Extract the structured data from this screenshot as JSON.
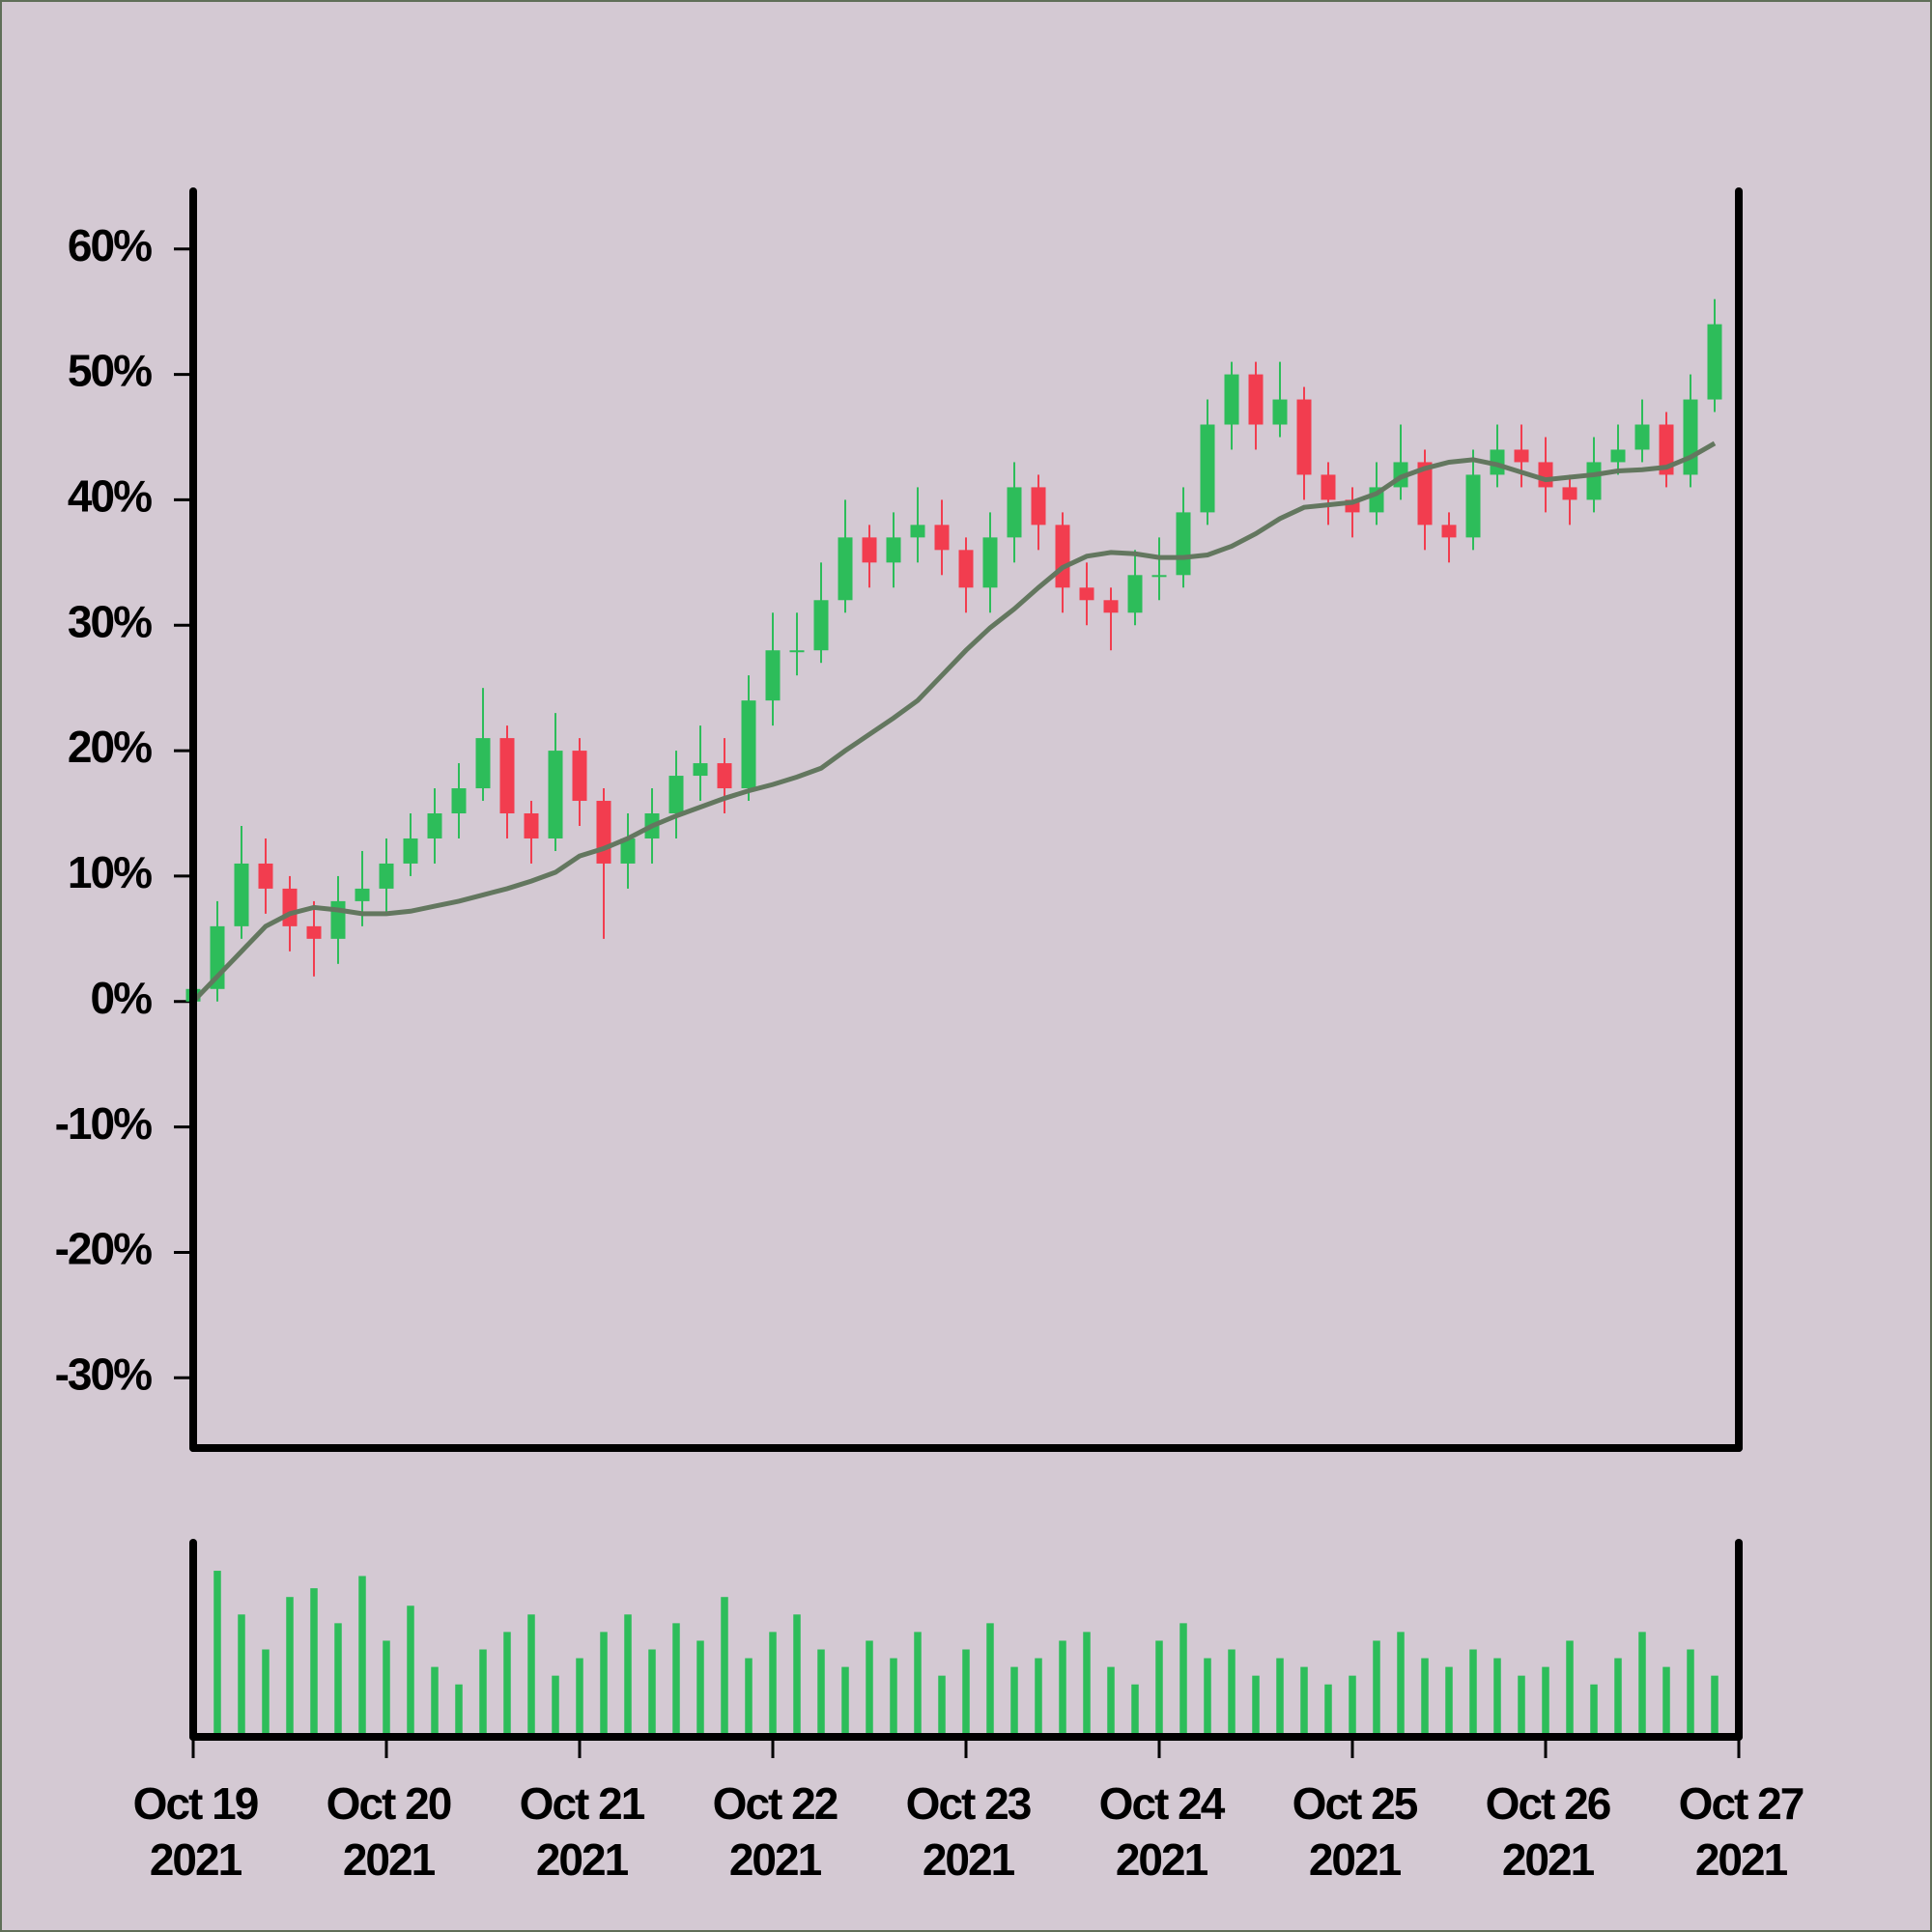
{
  "chart_data": {
    "type": "candlestick",
    "x": [
      0,
      1,
      2,
      3,
      4,
      5,
      6,
      7,
      8,
      9,
      10,
      11,
      12,
      13,
      14,
      15,
      16,
      17,
      18,
      19,
      20,
      21,
      22,
      23,
      24,
      25,
      26,
      27,
      28,
      29,
      30,
      31,
      32,
      33,
      34,
      35,
      36,
      37,
      38,
      39,
      40,
      41,
      42,
      43,
      44,
      45,
      46,
      47,
      48,
      49,
      50,
      51,
      52,
      53,
      54,
      55,
      56,
      57,
      58,
      59,
      60,
      61,
      62,
      63
    ],
    "open": [
      0,
      1,
      6,
      11,
      9,
      6,
      5,
      8,
      9,
      11,
      13,
      15,
      17,
      21,
      15,
      13,
      20,
      16,
      11,
      13,
      15,
      18,
      19,
      17,
      24,
      28,
      28,
      32,
      37,
      35,
      37,
      38,
      36,
      33,
      37,
      41,
      38,
      33,
      32,
      31,
      34,
      34,
      39,
      46,
      50,
      46,
      48,
      42,
      40,
      39,
      41,
      43,
      38,
      37,
      42,
      44,
      43,
      41,
      40,
      43,
      44,
      46,
      42,
      48
    ],
    "high": [
      3,
      8,
      14,
      13,
      10,
      8,
      10,
      12,
      13,
      15,
      17,
      19,
      25,
      22,
      16,
      23,
      21,
      17,
      15,
      17,
      20,
      22,
      21,
      26,
      31,
      31,
      35,
      40,
      38,
      39,
      41,
      40,
      37,
      39,
      43,
      42,
      39,
      35,
      33,
      36,
      37,
      41,
      48,
      51,
      51,
      51,
      49,
      43,
      41,
      43,
      46,
      44,
      39,
      44,
      46,
      46,
      45,
      42,
      45,
      46,
      48,
      47,
      50,
      56
    ],
    "low": [
      -4,
      0,
      5,
      7,
      4,
      2,
      3,
      6,
      7,
      10,
      11,
      13,
      16,
      13,
      11,
      12,
      14,
      5,
      9,
      11,
      13,
      16,
      15,
      16,
      22,
      26,
      27,
      31,
      33,
      33,
      35,
      34,
      31,
      31,
      35,
      36,
      31,
      30,
      28,
      30,
      32,
      33,
      38,
      44,
      44,
      45,
      40,
      38,
      37,
      38,
      40,
      36,
      35,
      36,
      41,
      41,
      39,
      38,
      39,
      42,
      43,
      41,
      41,
      47
    ],
    "close": [
      1,
      6,
      11,
      9,
      6,
      5,
      8,
      9,
      11,
      13,
      15,
      17,
      21,
      15,
      13,
      20,
      16,
      11,
      13,
      15,
      18,
      19,
      17,
      24,
      28,
      28,
      32,
      37,
      35,
      37,
      38,
      36,
      33,
      37,
      41,
      38,
      33,
      32,
      31,
      34,
      34,
      39,
      46,
      50,
      46,
      48,
      42,
      40,
      39,
      41,
      43,
      38,
      37,
      42,
      44,
      43,
      41,
      40,
      43,
      44,
      46,
      42,
      48,
      54
    ],
    "up_color": "#2dbd5a",
    "down_color": "#f23d4f",
    "moving_average": {
      "color": "#63775f",
      "values": [
        0,
        2,
        4,
        6,
        7,
        7.5,
        7.3,
        7,
        7,
        7.2,
        7.6,
        8,
        8.5,
        9,
        9.6,
        10.3,
        11.6,
        12.2,
        13,
        14,
        14.8,
        15.5,
        16.2,
        16.8,
        17.3,
        17.9,
        18.6,
        20,
        21.3,
        22.6,
        24,
        26,
        28,
        29.8,
        31.3,
        33,
        34.6,
        35.5,
        35.8,
        35.7,
        35.4,
        35.4,
        35.6,
        36.3,
        37.3,
        38.5,
        39.4,
        39.6,
        39.8,
        40.5,
        41.8,
        42.5,
        43,
        43.2,
        42.8,
        42.2,
        41.6,
        41.8,
        42,
        42.3,
        42.4,
        42.6,
        43.4,
        44.5
      ]
    },
    "volume": {
      "color": "#2dbd5a",
      "ylim": [
        0,
        100
      ],
      "values": [
        60,
        95,
        70,
        50,
        80,
        85,
        65,
        92,
        55,
        75,
        40,
        30,
        50,
        60,
        70,
        35,
        45,
        60,
        70,
        50,
        65,
        55,
        80,
        45,
        60,
        70,
        50,
        40,
        55,
        45,
        60,
        35,
        50,
        65,
        40,
        45,
        55,
        60,
        40,
        30,
        55,
        65,
        45,
        50,
        35,
        45,
        40,
        30,
        35,
        55,
        60,
        45,
        40,
        50,
        45,
        35,
        40,
        55,
        30,
        45,
        60,
        40,
        50,
        35
      ]
    },
    "xlim": [
      0,
      64
    ],
    "xticks": [
      {
        "value": 0,
        "label": "Oct 19\n2021"
      },
      {
        "value": 8,
        "label": "Oct 20\n2021"
      },
      {
        "value": 16,
        "label": "Oct 21\n2021"
      },
      {
        "value": 24,
        "label": "Oct 22\n2021"
      },
      {
        "value": 32,
        "label": "Oct 23\n2021"
      },
      {
        "value": 40,
        "label": "Oct 24\n2021"
      },
      {
        "value": 48,
        "label": "Oct 25\n2021"
      },
      {
        "value": 56,
        "label": "Oct 26\n2021"
      },
      {
        "value": 64,
        "label": "Oct 27\n2021"
      }
    ],
    "ylim": [
      -35.6,
      64.6
    ],
    "yticks": [
      {
        "value": -30,
        "label": "-30%"
      },
      {
        "value": -20,
        "label": "-20%"
      },
      {
        "value": -10,
        "label": "-10%"
      },
      {
        "value": 0,
        "label": "0%"
      },
      {
        "value": 10,
        "label": "10%"
      },
      {
        "value": 20,
        "label": "20%"
      },
      {
        "value": 30,
        "label": "30%"
      },
      {
        "value": 40,
        "label": "40%"
      },
      {
        "value": 50,
        "label": "50%"
      },
      {
        "value": 60,
        "label": "60%"
      }
    ]
  }
}
